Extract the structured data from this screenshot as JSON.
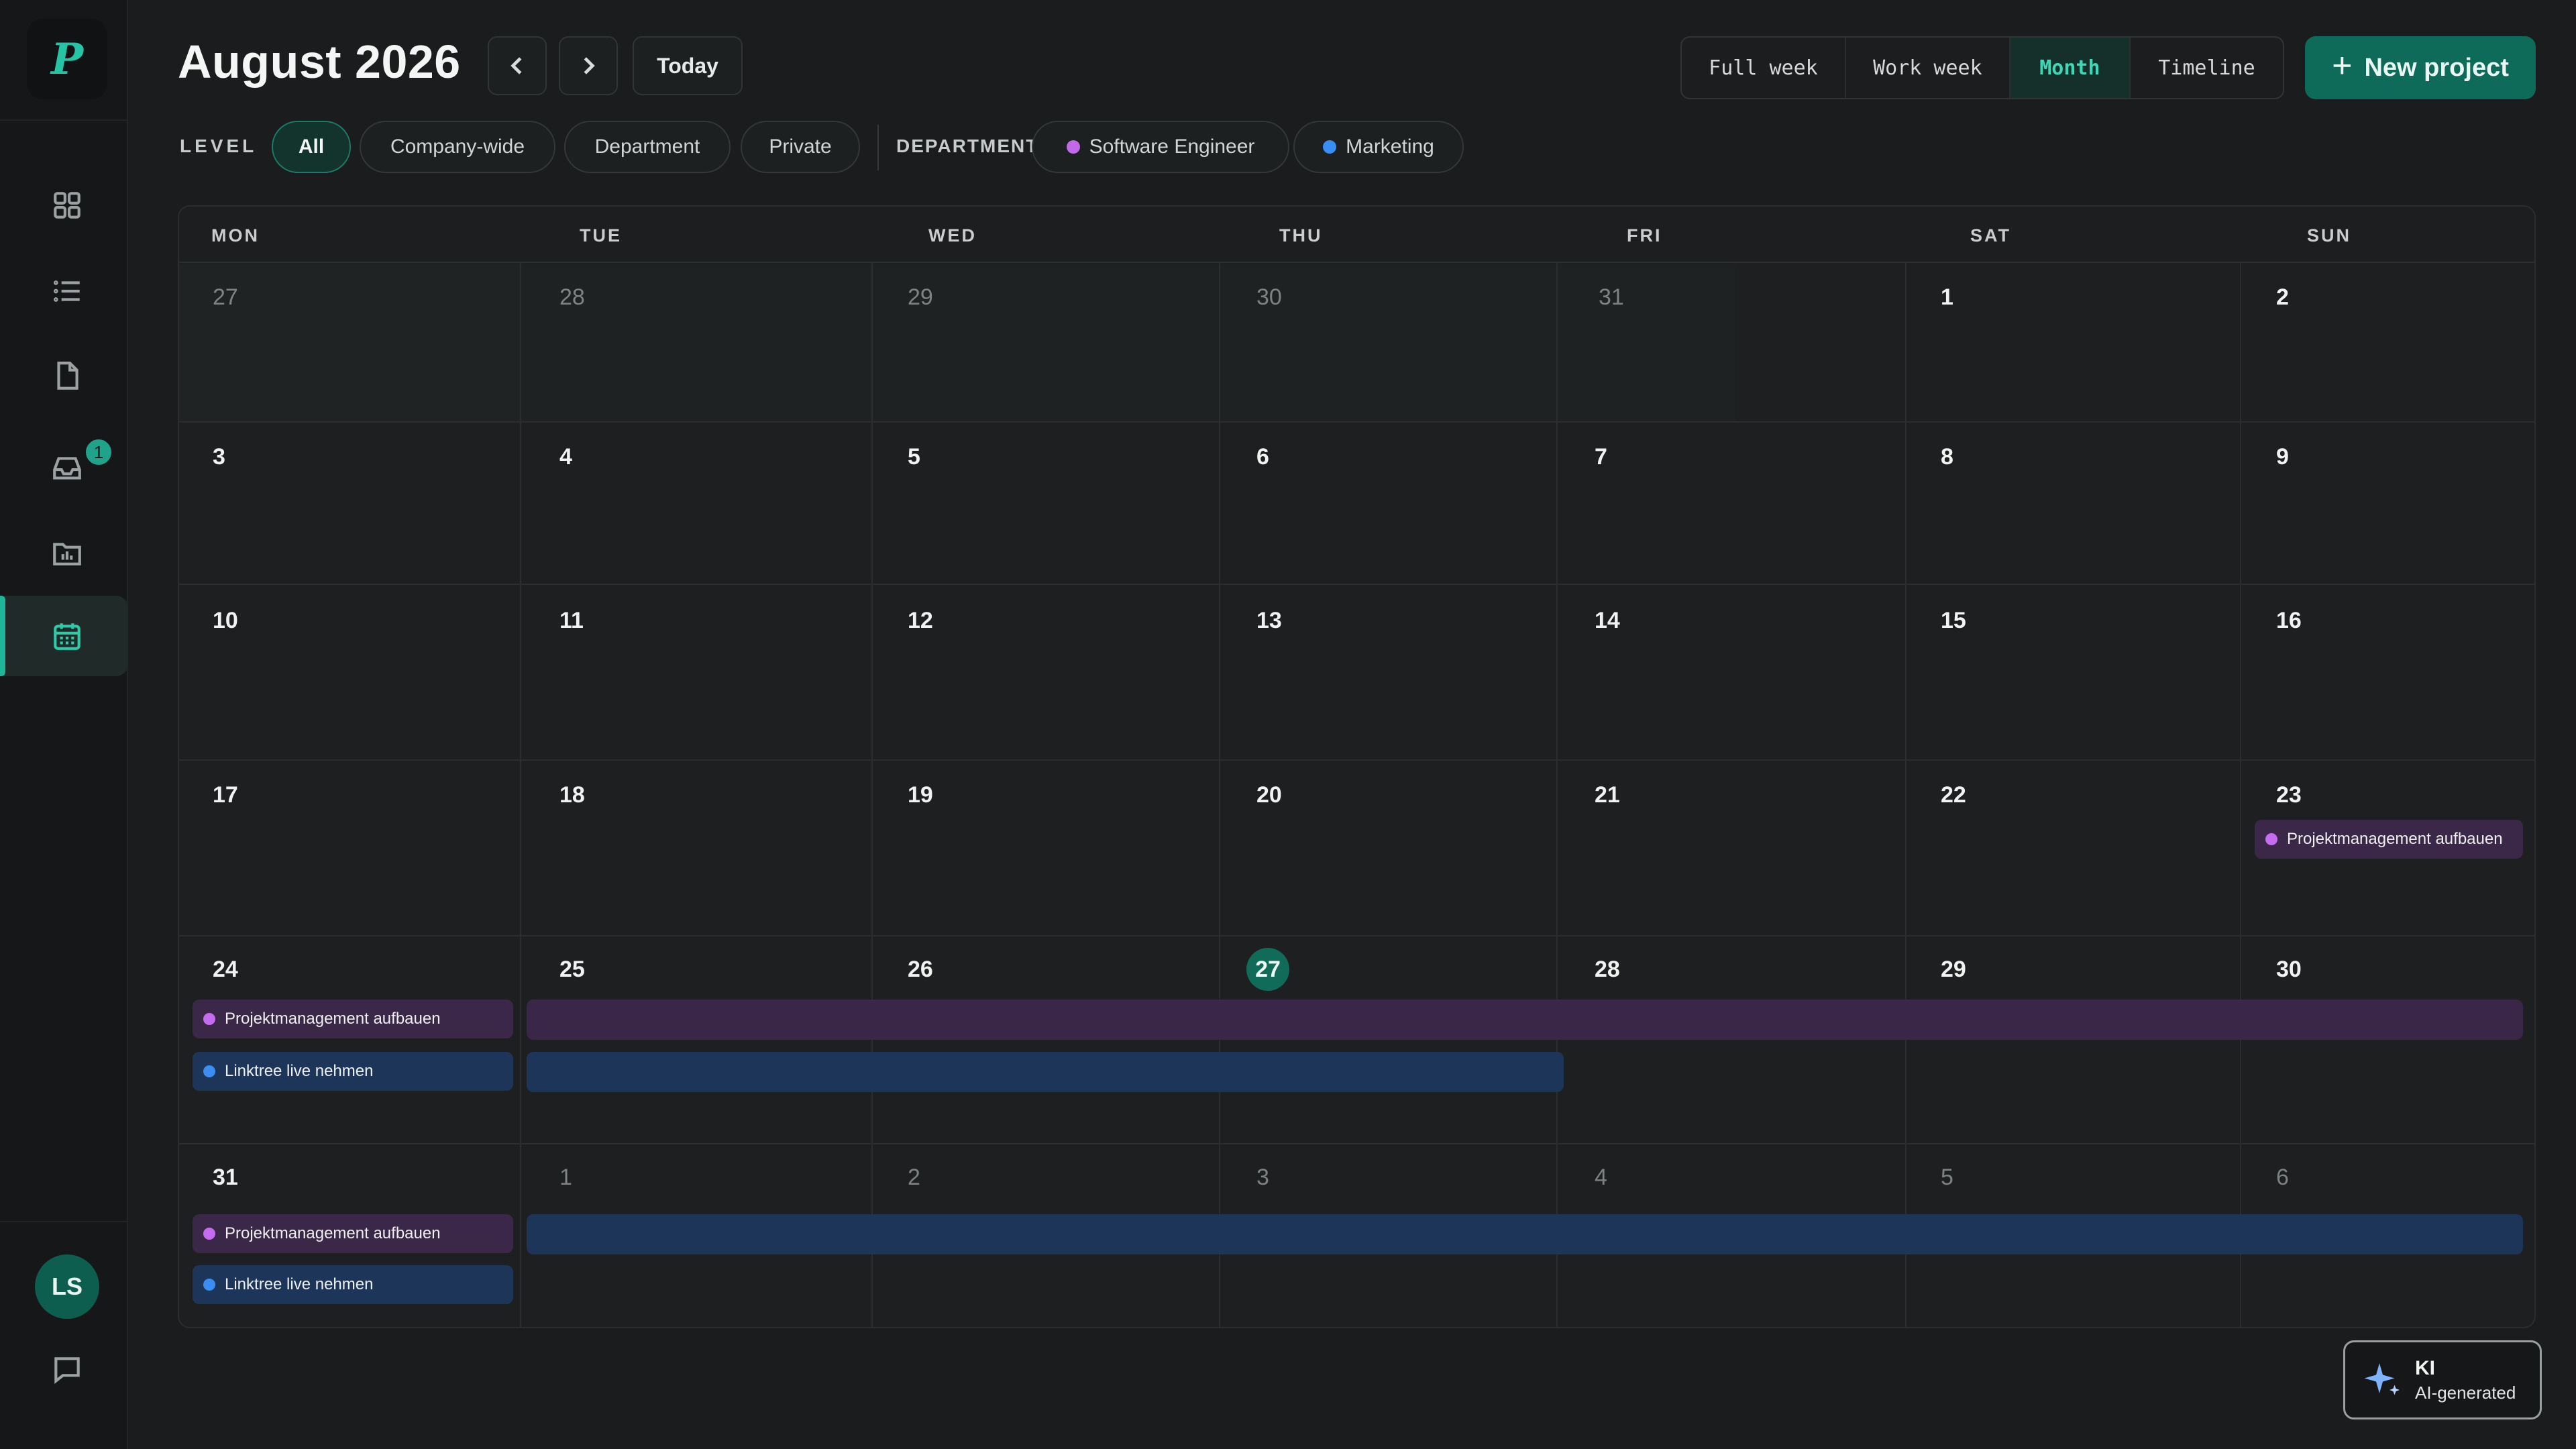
{
  "app": {
    "logo_letter": "P",
    "user_initials": "LS",
    "inbox_badge": "1"
  },
  "header": {
    "title": "August 2026",
    "today_label": "Today",
    "views": [
      "Full week",
      "Work week",
      "Month",
      "Timeline"
    ],
    "active_view": "Month",
    "new_project_label": "New project"
  },
  "filters": {
    "level_label": "LEVEL",
    "levels": [
      "All",
      "Company-wide",
      "Department",
      "Private"
    ],
    "active_level": "All",
    "department_label": "DEPARTMENT",
    "departments": [
      {
        "name": "Software Engineer",
        "color": "#c06ae8"
      },
      {
        "name": "Marketing",
        "color": "#3a8df2"
      }
    ]
  },
  "calendar": {
    "weekdays": [
      "MON",
      "TUE",
      "WED",
      "THU",
      "FRI",
      "SAT",
      "SUN"
    ],
    "weeks": [
      [
        "27",
        "28",
        "29",
        "30",
        "31",
        "1",
        "2"
      ],
      [
        "3",
        "4",
        "5",
        "6",
        "7",
        "8",
        "9"
      ],
      [
        "10",
        "11",
        "12",
        "13",
        "14",
        "15",
        "16"
      ],
      [
        "17",
        "18",
        "19",
        "20",
        "21",
        "22",
        "23"
      ],
      [
        "24",
        "25",
        "26",
        "27",
        "28",
        "29",
        "30"
      ],
      [
        "31",
        "1",
        "2",
        "3",
        "4",
        "5",
        "6"
      ]
    ],
    "today": "27",
    "events": {
      "projekt": "Projektmanagement aufbauen",
      "linktree": "Linktree live nehmen"
    }
  },
  "ai_badge": {
    "title": "KI",
    "subtitle": "AI-generated"
  },
  "colors": {
    "accent": "#1fb596",
    "purple_event": "#c66cf0",
    "blue_event": "#3a8df2"
  }
}
